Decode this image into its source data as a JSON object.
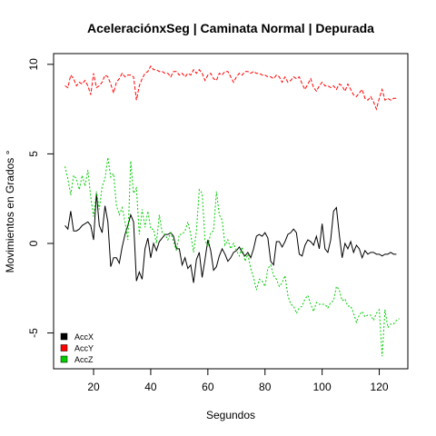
{
  "chart_data": {
    "type": "line",
    "title": "AceleraciónxSeg | Caminata Normal | Depurada",
    "xlabel": "Segundos",
    "ylabel": "Movimientos en Grados °",
    "xlim": [
      6,
      130
    ],
    "ylim": [
      -7,
      10.6
    ],
    "xticks": [
      20,
      40,
      60,
      80,
      100,
      120
    ],
    "yticks": [
      -5,
      0,
      5,
      10
    ],
    "grid": false,
    "legend_position": "bottom-left",
    "x_start": 10,
    "x_step": 1,
    "series": [
      {
        "name": "AccX",
        "color": "#000000",
        "dash": "solid",
        "values": [
          1.0,
          0.8,
          1.8,
          0.7,
          0.7,
          0.8,
          1.0,
          1.1,
          1.2,
          1.0,
          0.2,
          2.8,
          1.0,
          0.6,
          2.1,
          1.2,
          -1.3,
          -0.8,
          -0.8,
          -1.1,
          -0.2,
          0.5,
          1.0,
          1.6,
          1.2,
          -2.1,
          -1.6,
          -2.0,
          -0.3,
          0.3,
          -0.8,
          0.0,
          -0.4,
          0.1,
          0.3,
          0.5,
          0.5,
          0.6,
          0.4,
          -0.3,
          -0.3,
          -1.2,
          -0.8,
          -1.4,
          -1.2,
          -2.2,
          -0.9,
          -0.5,
          -1.9,
          -0.9,
          0.2,
          -0.4,
          -1.5,
          -1.3,
          -0.7,
          -0.3,
          -0.6,
          -1.0,
          -0.8,
          -0.5,
          -0.4,
          -0.2,
          -0.5,
          -0.7,
          -0.5,
          -0.8,
          -0.3,
          0.4,
          0.5,
          0.4,
          0.6,
          0.3,
          -1.0,
          -1.2,
          0.1,
          0.1,
          -0.2,
          0.1,
          0.5,
          0.6,
          0.8,
          0.6,
          -0.6,
          -0.7,
          -0.1,
          0.2,
          0.1,
          -0.1,
          0.4,
          -0.3,
          1.1,
          -0.3,
          -0.5,
          0.2,
          1.8,
          2.0,
          0.5,
          -0.8,
          0.0,
          -0.3,
          0.1,
          -0.5,
          -0.1,
          -0.3,
          -0.8,
          -0.4,
          -0.6,
          -0.5,
          -0.5,
          -0.6,
          -0.6,
          -0.7,
          -0.6,
          -0.6,
          -0.5,
          -0.6,
          -0.6
        ],
        "legend": true
      },
      {
        "name": "AccY",
        "color": "#ff0000",
        "dash": "4,2",
        "values": [
          8.8,
          8.7,
          9.4,
          9.2,
          8.8,
          9.0,
          8.9,
          9.1,
          8.8,
          8.3,
          9.5,
          8.7,
          8.8,
          9.0,
          9.4,
          9.3,
          8.9,
          8.4,
          9.0,
          9.2,
          9.5,
          9.3,
          9.4,
          9.4,
          9.3,
          8.0,
          8.8,
          9.2,
          9.5,
          9.6,
          9.9,
          9.7,
          9.7,
          9.6,
          9.6,
          9.5,
          9.5,
          9.3,
          9.6,
          9.6,
          9.4,
          9.5,
          9.3,
          9.5,
          9.4,
          9.7,
          9.5,
          9.7,
          9.5,
          9.1,
          9.4,
          9.5,
          9.2,
          9.1,
          9.5,
          9.4,
          9.6,
          9.6,
          9.3,
          9.0,
          9.3,
          9.5,
          9.4,
          9.6,
          9.6,
          9.5,
          9.6,
          9.5,
          9.5,
          9.4,
          9.4,
          9.3,
          9.3,
          9.2,
          9.4,
          9.3,
          9.0,
          9.3,
          9.0,
          9.1,
          9.3,
          9.2,
          9.3,
          8.9,
          8.6,
          8.9,
          9.2,
          8.7,
          8.5,
          8.8,
          9.0,
          8.8,
          8.8,
          8.7,
          8.8,
          8.6,
          8.9,
          8.8,
          8.5,
          8.9,
          8.6,
          8.3,
          8.2,
          8.4,
          8.6,
          8.1,
          8.0,
          8.2,
          7.9,
          7.5,
          8.1,
          8.6,
          8.0,
          8.1,
          8.0,
          8.1,
          8.1
        ],
        "legend": true
      },
      {
        "name": "AccZ",
        "color": "#00cc00",
        "dash": "2,2",
        "values": [
          4.3,
          3.6,
          2.7,
          3.8,
          3.6,
          3.0,
          3.8,
          3.2,
          4.1,
          2.6,
          1.5,
          2.9,
          1.9,
          3.2,
          3.6,
          4.8,
          3.7,
          3.9,
          2.1,
          1.6,
          2.0,
          1.2,
          0.2,
          4.6,
          2.8,
          3.1,
          0.5,
          1.9,
          0.9,
          1.8,
          0.8,
          0.8,
          0.0,
          1.6,
          0.6,
          0.5,
          0.2,
          0.6,
          0.1,
          -0.4,
          0.5,
          0.5,
          0.7,
          1.2,
          0.5,
          -0.5,
          0.7,
          3.0,
          2.8,
          0.2,
          -0.2,
          0.6,
          0.7,
          2.9,
          1.6,
          1.3,
          -0.1,
          0.2,
          -0.3,
          0.0,
          -0.4,
          -0.7,
          -0.2,
          -1.0,
          -0.6,
          -1.4,
          -1.9,
          -2.6,
          -2.0,
          -2.1,
          -2.4,
          -1.4,
          -1.2,
          -1.8,
          -2.0,
          -2.4,
          -2.2,
          -1.8,
          -2.9,
          -3.4,
          -3.5,
          -3.9,
          -3.6,
          -3.5,
          -3.1,
          -2.9,
          -3.4,
          -3.8,
          -3.3,
          -3.4,
          -3.4,
          -3.4,
          -3.6,
          -3.3,
          -3.2,
          -2.4,
          -2.6,
          -3.2,
          -3.1,
          -3.5,
          -3.5,
          -3.9,
          -4.4,
          -4.0,
          -3.8,
          -4.1,
          -4.0,
          -4.0,
          -4.3,
          -3.9,
          -3.7,
          -6.3,
          -3.7,
          -4.7,
          -4.5,
          -4.5,
          -4.3,
          -4.2
        ],
        "legend": true
      }
    ]
  }
}
